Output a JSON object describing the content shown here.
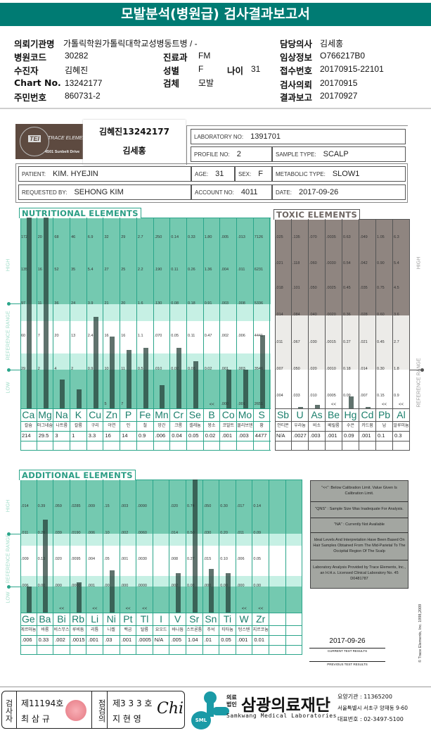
{
  "title": "모발분석(병원급) 검사결과보고서",
  "header": {
    "institution_label": "의뢰기관명",
    "institution": "가톨릭학원가톨릭대학교성병동트병 / -",
    "hospital_code_label": "병원코드",
    "hospital_code": "30282",
    "patient_label": "수진자",
    "patient": "김혜진",
    "chart_label": "Chart No.",
    "chart_no": "13242177",
    "rrn_label": "주민번호",
    "rrn": "860731-2",
    "dept_label": "진료과",
    "dept": "FM",
    "sex_label": "성별",
    "sex": "F",
    "age_label": "나이",
    "age": "31",
    "specimen_label": "검체",
    "specimen": "모발",
    "doctor_label": "담당의사",
    "doctor": "김세홍",
    "clinical_label": "임상정보",
    "clinical": "O766217B0",
    "receipt_label": "접수번호",
    "receipt": "20170915-22101",
    "request_label": "검사의뢰",
    "request_date": "20170915",
    "report_label": "결과보고",
    "report_date": "20170927"
  },
  "lab": {
    "logo_name": "TRACE ELEMENTS",
    "logo_abbr": "TEI",
    "logo_address": "4501 Sunbelt Drive",
    "sticker_line1": "김혜진13242177",
    "sticker_line2": "김세홍",
    "lab_no_label": "LABORATORY NO:",
    "lab_no": "1391701",
    "profile_label": "PROFILE NO:",
    "profile": "2",
    "sample_label": "SAMPLE TYPE:",
    "sample": "SCALP",
    "patient_label": "PATIENT:",
    "patient": "KIM. HYEJIN",
    "age_label": "AGE:",
    "age": "31",
    "sex_label": "SEX:",
    "sex": "F",
    "metabolic_label": "METABOLIC TYPE:",
    "metabolic": "SLOW1",
    "requested_label": "REQUESTED BY:",
    "requested": "SEHONG KIM",
    "account_label": "ACCOUNT NO:",
    "account": "4011",
    "date_label": "DATE:",
    "date": "2017-09-26"
  },
  "colors": {
    "teal_dark": "#74c9b0",
    "teal_light": "#c6f0e4",
    "grid": "#2aa58a",
    "toxic_gray": "#8f8580",
    "toxic_light": "#ecebe8",
    "header": "#007b73"
  },
  "below_cal_mark": "<<",
  "nutritional": {
    "title": "NUTRITIONAL ELEMENTS",
    "side": {
      "high": "HIGH",
      "reference": "REFERENCE RANGE",
      "low": "LOW"
    },
    "elements": [
      {
        "symbol": "Ca",
        "korean": "칼슘",
        "value": "214",
        "ticks": [
          "29",
          "60",
          "97",
          "135",
          "172"
        ]
      },
      {
        "symbol": "Mg",
        "korean": "마그네슘",
        "value": "29.5",
        "ticks": [
          "2",
          "7",
          "11",
          "16",
          "20"
        ]
      },
      {
        "symbol": "Na",
        "korean": "나트륨",
        "value": "3",
        "ticks": [
          "4",
          "20",
          "36",
          "52",
          "68"
        ]
      },
      {
        "symbol": "K",
        "korean": "칼륨",
        "value": "1",
        "ticks": [
          "2",
          "13",
          "24",
          "35",
          "46"
        ]
      },
      {
        "symbol": "Cu",
        "korean": "구리",
        "value": "3.3",
        "ticks": [
          "0.9",
          "2.4",
          "3.9",
          "5.4",
          "6.9"
        ]
      },
      {
        "symbol": "Zn",
        "korean": "아연",
        "value": "16",
        "ticks": [
          "10",
          "16",
          "21",
          "27",
          "32"
        ],
        "bottom": "5"
      },
      {
        "symbol": "P",
        "korean": "인",
        "value": "14",
        "ticks": [
          "11",
          "16",
          "20",
          "25",
          "29"
        ],
        "bottom": "7"
      },
      {
        "symbol": "Fe",
        "korean": "철",
        "value": "0.9",
        "ticks": [
          "0.5",
          "1.1",
          "1.6",
          "2.2",
          "2.7"
        ]
      },
      {
        "symbol": "Mn",
        "korean": "망간",
        "value": ".006",
        "ticks": [
          ".010",
          ".070",
          ".130",
          ".190",
          ".250"
        ]
      },
      {
        "symbol": "Cr",
        "korean": "크롬",
        "value": "0.04",
        "ticks": [
          "0.02",
          "0.05",
          "0.08",
          "0.11",
          "0.14"
        ]
      },
      {
        "symbol": "Se",
        "korean": "셀레늄",
        "value": "0.05",
        "ticks": [
          "0.03",
          "0.11",
          "0.18",
          "0.26",
          "0.33"
        ]
      },
      {
        "symbol": "B",
        "korean": "붕소",
        "value": "0.02",
        "ticks": [
          "0.02",
          "0.47",
          "0.91",
          "1.36",
          "1.80"
        ],
        "below_cal": true
      },
      {
        "symbol": "Co",
        "korean": "코발트",
        "value": ".001",
        "ticks": [
          ".001",
          ".002",
          ".003",
          ".004",
          ".005"
        ],
        "bottom": ".000"
      },
      {
        "symbol": "Mo",
        "korean": "몰리브덴",
        "value": ".003",
        "ticks": [
          ".003",
          ".006",
          ".008",
          ".011",
          ".013"
        ],
        "bottom": ".001"
      },
      {
        "symbol": "S",
        "korean": "황",
        "value": "4477",
        "ticks": [
          "3546",
          "4441",
          "5336",
          "6231",
          "7126"
        ],
        "bottom": "2651"
      }
    ]
  },
  "toxic": {
    "title": "TOXIC ELEMENTS",
    "side": {
      "high": "HIGH",
      "reference": "REFERENCE RANGE"
    },
    "elements": [
      {
        "symbol": "Sb",
        "korean": "안티몬",
        "value": "N/A",
        "ticks": [
          ".004",
          ".007",
          ".011",
          ".014",
          ".018",
          ".021",
          ".025"
        ]
      },
      {
        "symbol": "U",
        "korean": "우라늄",
        "value": ".0027",
        "ticks": [
          ".033",
          ".050",
          ".067",
          ".084",
          ".101",
          ".118",
          ".135"
        ]
      },
      {
        "symbol": "As",
        "korean": "비소",
        "value": ".003",
        "ticks": [
          ".010",
          ".020",
          ".030",
          ".040",
          ".050",
          ".060",
          ".070"
        ]
      },
      {
        "symbol": "Be",
        "korean": "베릴륨",
        "value": ".001",
        "ticks": [
          ".0005",
          ".0010",
          ".0015",
          ".0020",
          ".0025",
          ".0030",
          ".0035"
        ],
        "below_cal": true
      },
      {
        "symbol": "Hg",
        "korean": "수은",
        "value": "0.09",
        "ticks": [
          "0.09",
          "0.18",
          "0.27",
          "0.36",
          "0.45",
          "0.54",
          "0.63"
        ]
      },
      {
        "symbol": "Cd",
        "korean": "카드뮴",
        "value": ".001",
        "ticks": [
          ".007",
          ".014",
          ".021",
          ".028",
          ".035",
          ".042",
          ".049"
        ]
      },
      {
        "symbol": "Pb",
        "korean": "납",
        "value": "0.1",
        "ticks": [
          "0.15",
          "0.30",
          "0.45",
          "0.60",
          "0.75",
          "0.90",
          "1.05"
        ],
        "below_cal": true
      },
      {
        "symbol": "Al",
        "korean": "알루미늄",
        "value": "0.3",
        "ticks": [
          "0.9",
          "1.8",
          "2.7",
          "3.6",
          "4.5",
          "5.4",
          "6.3"
        ],
        "below_cal": true
      }
    ]
  },
  "additional": {
    "title": "ADDITIONAL ELEMENTS",
    "side": {
      "high": "HIGH",
      "reference": "REFERENCE RANGE",
      "low": "LOW"
    },
    "elements": [
      {
        "symbol": "Ge",
        "korean": "게르마늄",
        "value": ".006",
        "ticks": [
          ".006",
          ".009",
          ".011",
          ".014"
        ]
      },
      {
        "symbol": "Ba",
        "korean": "바륨",
        "value": "0.33",
        "ticks": [
          "0.00",
          "0.13",
          "0.26",
          "0.39"
        ]
      },
      {
        "symbol": "Bi",
        "korean": "비스무스",
        "value": ".002",
        "ticks": [
          ".000",
          ".020",
          ".039",
          ".059"
        ],
        "below_cal": true
      },
      {
        "symbol": "Rb",
        "korean": "루비듐",
        "value": ".0015",
        "ticks": [
          ".0000",
          ".0095",
          ".0190",
          ".0285"
        ]
      },
      {
        "symbol": "Li",
        "korean": "리튬",
        "value": ".001",
        "ticks": [
          ".001",
          ".004",
          ".006",
          ".009"
        ],
        "below_cal": true
      },
      {
        "symbol": "Ni",
        "korean": "니켈",
        "value": ".03",
        "ticks": [
          ".00",
          ".05",
          ".10",
          ".15"
        ]
      },
      {
        "symbol": "Pt",
        "korean": "백금",
        "value": ".001",
        "ticks": [
          ".000",
          ".001",
          ".002",
          ".003"
        ],
        "below_cal": true
      },
      {
        "symbol": "Tl",
        "korean": "탈륨",
        "value": ".0005",
        "ticks": [
          ".0000",
          ".0030",
          ".0060",
          ".0090"
        ],
        "below_cal": true
      },
      {
        "symbol": "I",
        "korean": "요오드",
        "value": "N/A",
        "ticks": []
      },
      {
        "symbol": "V",
        "korean": "바나듐",
        "value": ".005",
        "ticks": [
          ".002",
          ".008",
          ".014",
          ".020"
        ]
      },
      {
        "symbol": "Sr",
        "korean": "스트론튬",
        "value": "1.04",
        "ticks": [
          "0.03",
          "0.27",
          "0.50",
          "0.74"
        ]
      },
      {
        "symbol": "Sn",
        "korean": "주석",
        "value": ".01",
        "ticks": [
          ".000",
          ".015",
          ".030",
          ".050"
        ]
      },
      {
        "symbol": "Ti",
        "korean": "티타늄",
        "value": "0.05",
        "ticks": [
          "0.00",
          "0.10",
          "0.20",
          "0.30"
        ]
      },
      {
        "symbol": "W",
        "korean": "텅스텐",
        "value": ".001",
        "ticks": [
          ".000",
          ".006",
          ".011",
          ".017"
        ],
        "below_cal": true
      },
      {
        "symbol": "Zr",
        "korean": "지르코늄",
        "value": "0.01",
        "ticks": [
          "0.00",
          "0.05",
          "0.09",
          "0.14"
        ],
        "below_cal": true
      }
    ]
  },
  "legend": [
    "\"<<\" :Below Calibration Limit. Value Given Is Calibration Limit.",
    "\"QNS\" : Sample Size Was Inadequate For Analysis.",
    "\"NA\" : Currently Not Available",
    "Ideal Levels And Interpretation Have Been Based On Hair Samples Obtained From The Mid-Parietal To The Occipital Region Of The Scalp",
    "Laboratory Analysis Provided by Trace Elements, Inc., an H.H.s. Licensed Clinical Laboratory No. 45 D0481787"
  ],
  "results": {
    "current_date": "2017-09-26",
    "current_label": "CURRENT TEST RESULTS",
    "previous_label": "PREVIOUS TEST RESULTS"
  },
  "copyright": "© Trace Elements, Inc. 1998,2009",
  "footer": {
    "examiner_label": "검사자",
    "examiner_no": "제11194호",
    "examiner_name": "최 삼 규",
    "checker_label": "점검의",
    "checker_no": "제3 3 3 호",
    "checker_name": "지 현 영",
    "signature": "Chi",
    "logo_abbr": "SML",
    "org_type": "의료법인",
    "org_name": "삼광의료재단",
    "org_en": "Samkwang Medical Laboratories",
    "code": "요양기관 : 11365200",
    "address": "서울특별시 서초구 양재동 9-60",
    "phone": "대표번호 : 02-3497-5100"
  }
}
